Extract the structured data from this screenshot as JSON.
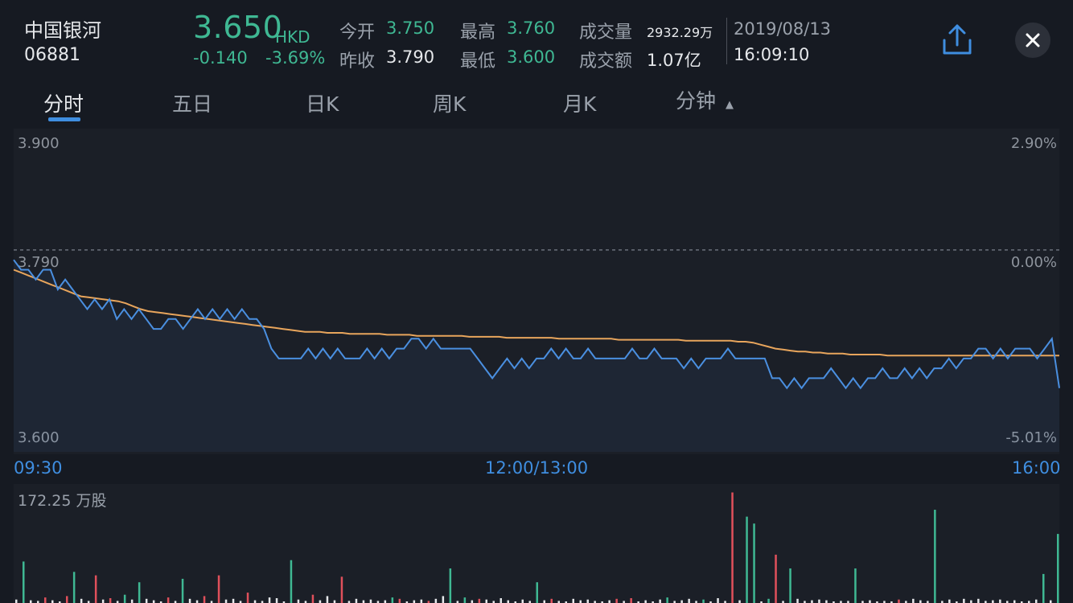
{
  "stock": {
    "name": "中国银河",
    "code": "06881",
    "price": "3.650",
    "currency": "HKD",
    "change": "-0.140",
    "change_pct": "-3.69%"
  },
  "quote": {
    "open_label": "今开",
    "open": "3.750",
    "prev_close_label": "昨收",
    "prev_close": "3.790",
    "high_label": "最高",
    "high": "3.760",
    "low_label": "最低",
    "low": "3.600",
    "volume_label": "成交量",
    "volume": "2932.29万",
    "turnover_label": "成交额",
    "turnover": "1.07亿",
    "date": "2019/08/13",
    "time": "16:09:10"
  },
  "icons": {
    "share": "share-icon",
    "close": "close-icon"
  },
  "tabs": [
    {
      "label": "分时",
      "active": true
    },
    {
      "label": "五日"
    },
    {
      "label": "日K"
    },
    {
      "label": "周K"
    },
    {
      "label": "月K"
    },
    {
      "label": "分钟"
    }
  ],
  "colors": {
    "price_line": "#4a8fe0",
    "avg_line": "#e8a55c",
    "down": "#3fb893",
    "up": "#e0505b",
    "neutral": "#e6e8eb"
  },
  "chart_data": {
    "type": "line",
    "y_left_ticks": [
      "3.900",
      "3.790",
      "3.600"
    ],
    "y_right_ticks": [
      "2.90%",
      "0.00%",
      "-5.01%"
    ],
    "ylim": [
      3.6,
      3.9
    ],
    "reference_price": 3.79,
    "x_ticks": [
      "09:30",
      "12:00/13:00",
      "16:00"
    ],
    "series": [
      {
        "values": [
          3.78,
          3.77,
          3.77,
          3.76,
          3.77,
          3.77,
          3.75,
          3.76,
          3.75,
          3.74,
          3.73,
          3.74,
          3.73,
          3.74,
          3.72,
          3.73,
          3.72,
          3.73,
          3.72,
          3.71,
          3.71,
          3.72,
          3.72,
          3.71,
          3.72,
          3.73,
          3.72,
          3.73,
          3.72,
          3.73,
          3.72,
          3.73,
          3.72,
          3.72,
          3.71,
          3.69,
          3.68,
          3.68,
          3.68,
          3.68,
          3.69,
          3.68,
          3.69,
          3.68,
          3.69,
          3.68,
          3.68,
          3.68,
          3.69,
          3.68,
          3.69,
          3.68,
          3.69,
          3.69,
          3.7,
          3.7,
          3.69,
          3.7,
          3.69,
          3.69,
          3.69,
          3.69,
          3.69,
          3.68,
          3.67,
          3.66,
          3.67,
          3.68,
          3.67,
          3.68,
          3.67,
          3.68,
          3.68,
          3.69,
          3.68,
          3.69,
          3.68,
          3.68,
          3.69,
          3.68,
          3.68,
          3.68,
          3.68,
          3.68,
          3.69,
          3.68,
          3.68,
          3.69,
          3.68,
          3.68,
          3.68,
          3.67,
          3.68,
          3.67,
          3.68,
          3.68,
          3.68,
          3.69,
          3.68,
          3.68,
          3.68,
          3.68,
          3.68,
          3.66,
          3.66,
          3.65,
          3.66,
          3.65,
          3.66,
          3.66,
          3.66,
          3.67,
          3.66,
          3.65,
          3.66,
          3.65,
          3.66,
          3.66,
          3.67,
          3.66,
          3.66,
          3.67,
          3.66,
          3.67,
          3.66,
          3.67,
          3.67,
          3.68,
          3.67,
          3.68,
          3.68,
          3.69,
          3.69,
          3.68,
          3.69,
          3.68,
          3.69,
          3.69,
          3.69,
          3.68,
          3.69,
          3.7,
          3.65
        ]
      },
      {
        "values": [
          3.77,
          3.767,
          3.764,
          3.761,
          3.758,
          3.755,
          3.752,
          3.749,
          3.746,
          3.743,
          3.742,
          3.741,
          3.74,
          3.739,
          3.738,
          3.736,
          3.733,
          3.73,
          3.728,
          3.727,
          3.726,
          3.725,
          3.724,
          3.723,
          3.722,
          3.721,
          3.72,
          3.719,
          3.718,
          3.717,
          3.716,
          3.715,
          3.714,
          3.713,
          3.712,
          3.711,
          3.71,
          3.709,
          3.708,
          3.707,
          3.707,
          3.707,
          3.706,
          3.706,
          3.706,
          3.705,
          3.705,
          3.705,
          3.705,
          3.705,
          3.704,
          3.704,
          3.704,
          3.704,
          3.703,
          3.703,
          3.703,
          3.703,
          3.703,
          3.703,
          3.703,
          3.702,
          3.702,
          3.702,
          3.702,
          3.702,
          3.701,
          3.701,
          3.701,
          3.701,
          3.701,
          3.701,
          3.701,
          3.7,
          3.7,
          3.7,
          3.7,
          3.7,
          3.7,
          3.7,
          3.7,
          3.699,
          3.699,
          3.699,
          3.699,
          3.699,
          3.699,
          3.699,
          3.699,
          3.699,
          3.698,
          3.698,
          3.698,
          3.698,
          3.698,
          3.698,
          3.698,
          3.697,
          3.697,
          3.696,
          3.694,
          3.692,
          3.69,
          3.689,
          3.688,
          3.687,
          3.687,
          3.686,
          3.686,
          3.685,
          3.685,
          3.685,
          3.684,
          3.684,
          3.684,
          3.684,
          3.684,
          3.683,
          3.683,
          3.683,
          3.683,
          3.683,
          3.683,
          3.683,
          3.683,
          3.683,
          3.683,
          3.683,
          3.683,
          3.683,
          3.683,
          3.683,
          3.683,
          3.683,
          3.683,
          3.683,
          3.683,
          3.683,
          3.683,
          3.683,
          3.683
        ]
      }
    ]
  },
  "volume_data": {
    "type": "bar",
    "max_label": "172.25 万股",
    "max_value": 172.25,
    "values": [
      5,
      60,
      4,
      3,
      8,
      4,
      2,
      10,
      45,
      6,
      3,
      40,
      5,
      7,
      3,
      12,
      5,
      30,
      6,
      4,
      2,
      8,
      3,
      35,
      6,
      4,
      10,
      3,
      40,
      5,
      6,
      3,
      15,
      4,
      3,
      8,
      7,
      2,
      62,
      5,
      3,
      12,
      4,
      10,
      4,
      38,
      3,
      6,
      4,
      5,
      3,
      4,
      8,
      6,
      2,
      4,
      5,
      3,
      6,
      10,
      50,
      3,
      8,
      4,
      6,
      5,
      3,
      7,
      4,
      2,
      5,
      3,
      30,
      4,
      6,
      3,
      2,
      6,
      4,
      5,
      3,
      2,
      4,
      6,
      3,
      7,
      2,
      4,
      2,
      5,
      8,
      3,
      4,
      6,
      3,
      5,
      2,
      7,
      3,
      160,
      4,
      125,
      115,
      2,
      6,
      70,
      3,
      50,
      6,
      3,
      4,
      5,
      4,
      2,
      3,
      3,
      50,
      3,
      4,
      1,
      3,
      2,
      5,
      3,
      6,
      4,
      3,
      135,
      3,
      5,
      2,
      6,
      4,
      6,
      3,
      4,
      5,
      3,
      4,
      2,
      3,
      5,
      42,
      4,
      100
    ],
    "directions": [
      "n",
      "d",
      "n",
      "n",
      "u",
      "n",
      "n",
      "u",
      "d",
      "n",
      "n",
      "u",
      "n",
      "u",
      "n",
      "d",
      "n",
      "d",
      "n",
      "n",
      "n",
      "u",
      "n",
      "d",
      "n",
      "n",
      "u",
      "n",
      "u",
      "n",
      "n",
      "n",
      "u",
      "n",
      "n",
      "n",
      "n",
      "n",
      "d",
      "n",
      "n",
      "u",
      "n",
      "n",
      "n",
      "u",
      "n",
      "n",
      "n",
      "n",
      "n",
      "n",
      "d",
      "u",
      "n",
      "n",
      "n",
      "u",
      "n",
      "n",
      "d",
      "n",
      "d",
      "n",
      "u",
      "n",
      "n",
      "n",
      "n",
      "n",
      "n",
      "n",
      "d",
      "n",
      "u",
      "n",
      "n",
      "n",
      "n",
      "n",
      "n",
      "n",
      "n",
      "u",
      "n",
      "u",
      "n",
      "n",
      "n",
      "n",
      "d",
      "n",
      "n",
      "n",
      "n",
      "d",
      "n",
      "n",
      "n",
      "u",
      "n",
      "d",
      "d",
      "n",
      "d",
      "u",
      "n",
      "d",
      "n",
      "n",
      "n",
      "n",
      "n",
      "n",
      "n",
      "n",
      "d",
      "n",
      "n",
      "n",
      "n",
      "n",
      "u",
      "n",
      "n",
      "n",
      "n",
      "d",
      "n",
      "n",
      "n",
      "n",
      "n",
      "n",
      "n",
      "n",
      "n",
      "n",
      "n",
      "n",
      "n",
      "n",
      "d",
      "n",
      "d"
    ]
  }
}
